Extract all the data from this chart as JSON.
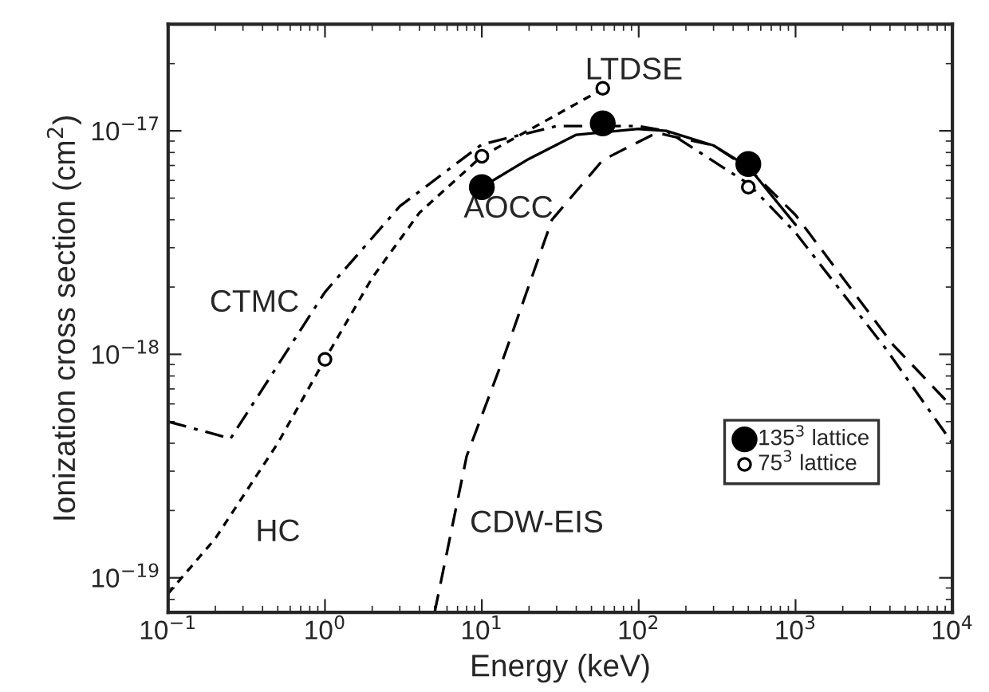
{
  "chart_data": {
    "type": "line",
    "xlabel": "Energy (keV)",
    "ylabel": "Ionization cross section (cm$^{2}$)",
    "log": "xy",
    "grid": false,
    "legend": "bottom right",
    "xlim": [
      0.1,
      10000
    ],
    "ylim": [
      7e-20,
      3e-17
    ],
    "xticks": [
      {
        "value": 0.1,
        "label": "10$^{−1}$"
      },
      {
        "value": 1,
        "label": "10$^{0}$"
      },
      {
        "value": 10,
        "label": "10$^{1}$"
      },
      {
        "value": 100,
        "label": "10$^{2}$"
      },
      {
        "value": 1000,
        "label": "10$^{3}$"
      },
      {
        "value": 10000,
        "label": "10$^{4}$"
      }
    ],
    "yticks": [
      {
        "value": 1e-19,
        "label": "10$^{−19}$"
      },
      {
        "value": 1e-18,
        "label": "10$^{−18}$"
      },
      {
        "value": 1e-17,
        "label": "10$^{−17}$"
      }
    ],
    "series": [
      {
        "color": "#000000",
        "line_style": "solid",
        "x": [
          10,
          20,
          40,
          100,
          150,
          300,
          500,
          1000
        ],
        "values": [
          5.6e-18,
          7.5e-18,
          9.6e-18,
          1.02e-17,
          1e-17,
          8.6e-18,
          6.9e-18,
          3.8e-18
        ]
      },
      {
        "color": "#000000",
        "line_style": "dashdot",
        "x": [
          0.1,
          0.25,
          0.4,
          1,
          3,
          10,
          30,
          100,
          150,
          500,
          1000,
          3800,
          10000
        ],
        "values": [
          5e-19,
          4.2e-19,
          7e-19,
          1.9e-18,
          4.6e-18,
          8.7e-18,
          1.05e-17,
          1.05e-17,
          1e-17,
          5.8e-18,
          3.5e-18,
          1.05e-18,
          4e-19
        ]
      },
      {
        "color": "#000000",
        "line_style": "dotted",
        "x": [
          0.1,
          0.2,
          0.5,
          1,
          2,
          4,
          10,
          25,
          60
        ],
        "values": [
          8.5e-20,
          1.5e-19,
          4e-19,
          9.5e-19,
          2.2e-18,
          4.3e-18,
          7.7e-18,
          1.1e-17,
          1.55e-17
        ]
      },
      {
        "color": "#000000",
        "line_style": "dashed",
        "x": [
          5,
          8,
          14,
          28,
          59,
          130,
          300,
          500,
          1000,
          4200,
          10000
        ],
        "values": [
          7e-20,
          3.5e-19,
          1e-18,
          4e-18,
          7.4e-18,
          9.8e-18,
          8.6e-18,
          6.8e-18,
          4.2e-18,
          1.1e-18,
          5.8e-19
        ]
      },
      {
        "type": "scatter",
        "name": "135$^{3}$ lattice",
        "color": "#000000",
        "marker": "circle",
        "x": [
          10,
          59,
          500
        ],
        "values": [
          5.6e-18,
          1.08e-17,
          7.1e-18
        ]
      },
      {
        "type": "scatter",
        "name": "75$^{3}$ lattice",
        "color": "#ffffff",
        "marker": "circle",
        "x": [
          1,
          10,
          59,
          500
        ],
        "values": [
          9.5e-19,
          7.7e-18,
          1.55e-17,
          5.6e-18
        ]
      }
    ],
    "annotations": [
      "LTDSE",
      "AOCC",
      "CTMC",
      "HC",
      "CDW-EIS"
    ]
  }
}
